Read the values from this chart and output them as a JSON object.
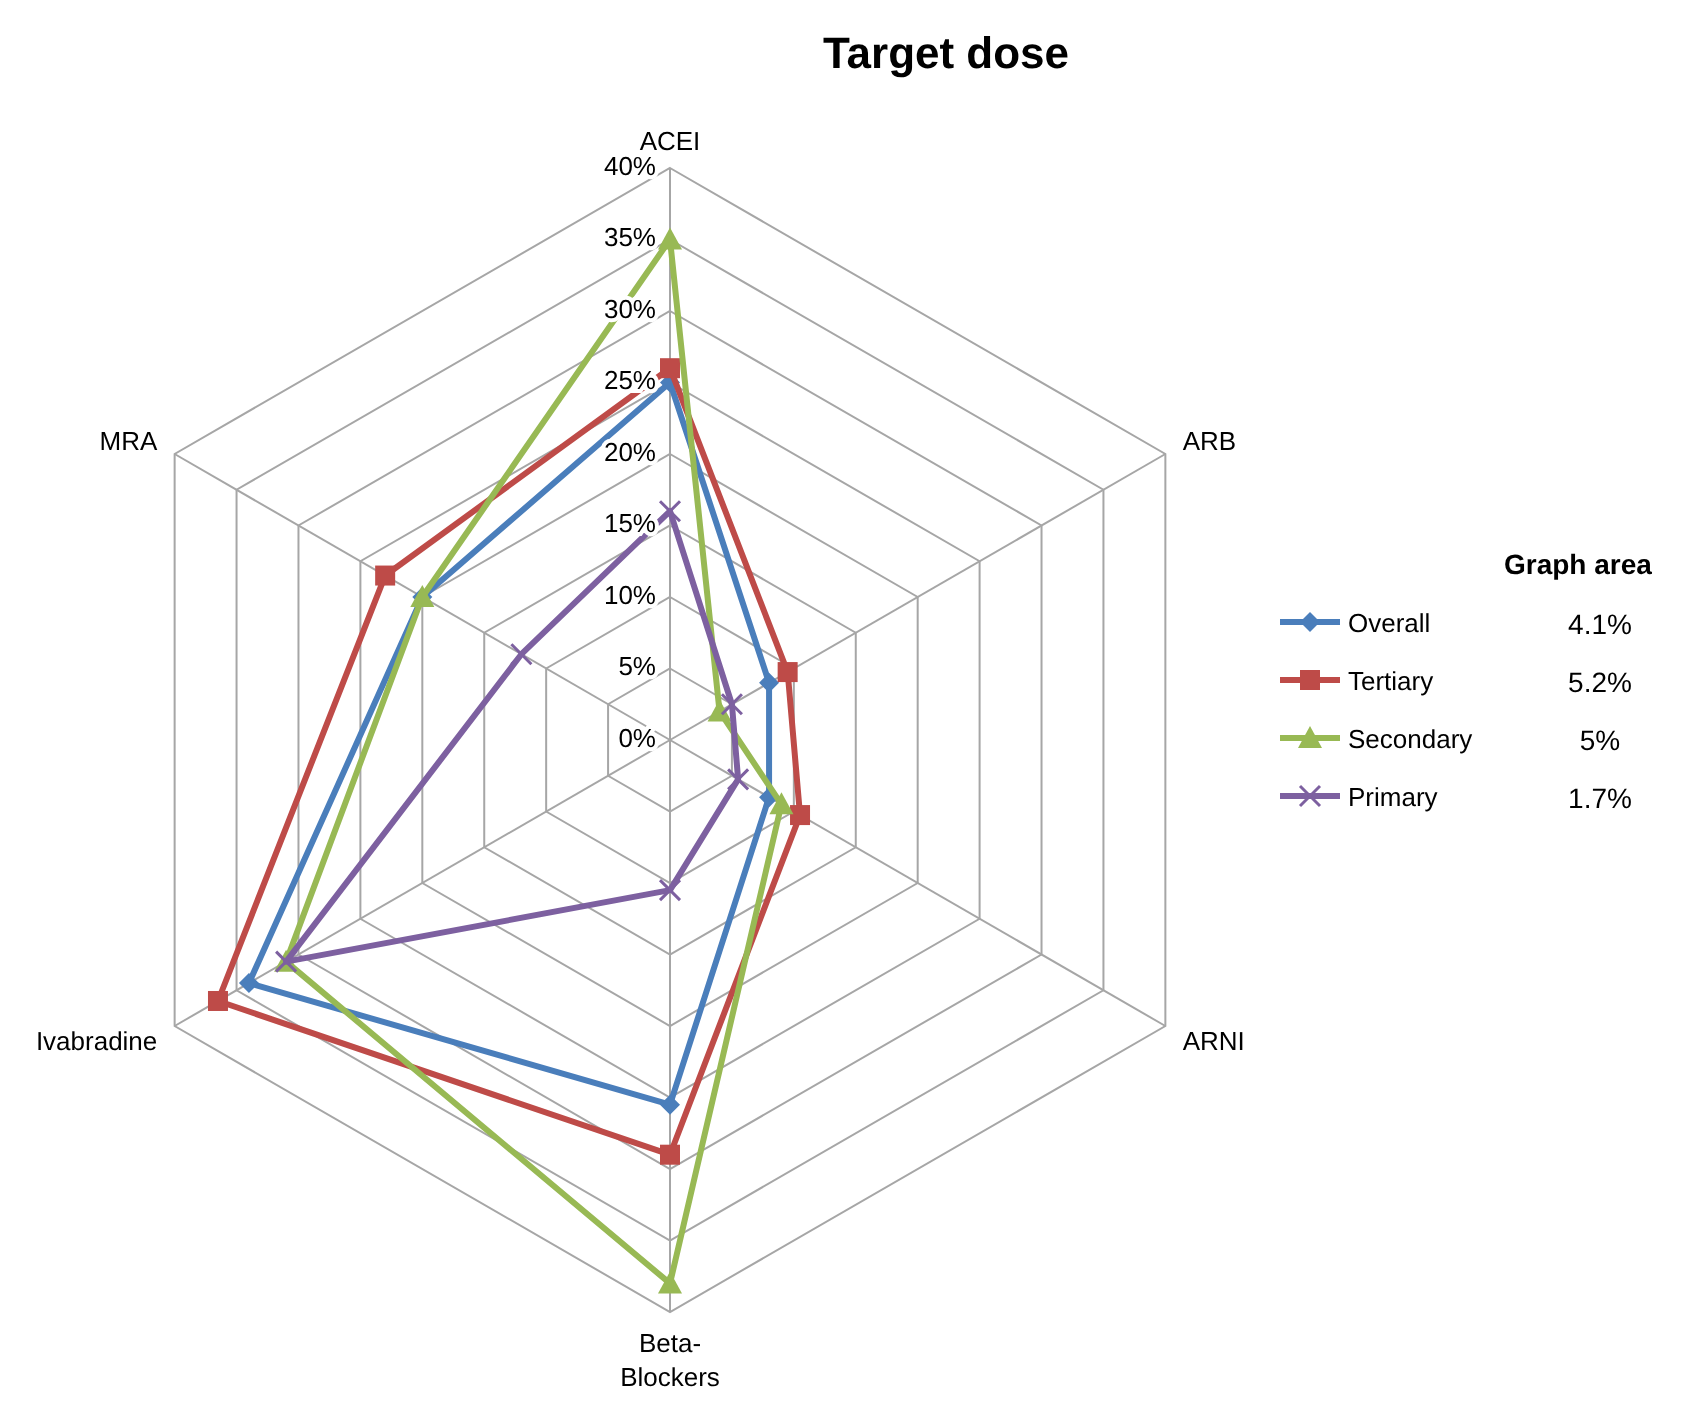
{
  "chart_data": {
    "type": "radar",
    "title": "Target dose",
    "legend_title": "Graph area",
    "categories": [
      "ACEI",
      "ARB",
      "ARNI",
      "Beta-Blockers",
      "Ivabradine",
      "MRA"
    ],
    "series": [
      {
        "name": "Overall",
        "color": "#4a7ebb",
        "marker": "diamond",
        "values": [
          25,
          8,
          8,
          25.5,
          34,
          20
        ]
      },
      {
        "name": "Tertiary",
        "color": "#be4b48",
        "marker": "square",
        "values": [
          26,
          9.5,
          10.5,
          29,
          36.5,
          23
        ]
      },
      {
        "name": "Secondary",
        "color": "#98b954",
        "marker": "triangle",
        "values": [
          35,
          4,
          9,
          38,
          31,
          20
        ]
      },
      {
        "name": "Primary",
        "color": "#7d60a0",
        "marker": "cross",
        "values": [
          16,
          5,
          5.5,
          10.5,
          31,
          12
        ]
      }
    ],
    "ylim": [
      0,
      40
    ],
    "yticks": [
      {
        "value": 0,
        "label": "0%"
      },
      {
        "value": 5,
        "label": "5%"
      },
      {
        "value": 10,
        "label": "10%"
      },
      {
        "value": 15,
        "label": "15%"
      },
      {
        "value": 20,
        "label": "20%"
      },
      {
        "value": 25,
        "label": "25%"
      },
      {
        "value": 30,
        "label": "30%"
      },
      {
        "value": 35,
        "label": "35%"
      },
      {
        "value": 40,
        "label": "40%"
      }
    ],
    "grid": true,
    "legend": "right",
    "annotations": [
      "4.1%",
      "5.2%",
      "5%",
      "1.7%"
    ]
  }
}
